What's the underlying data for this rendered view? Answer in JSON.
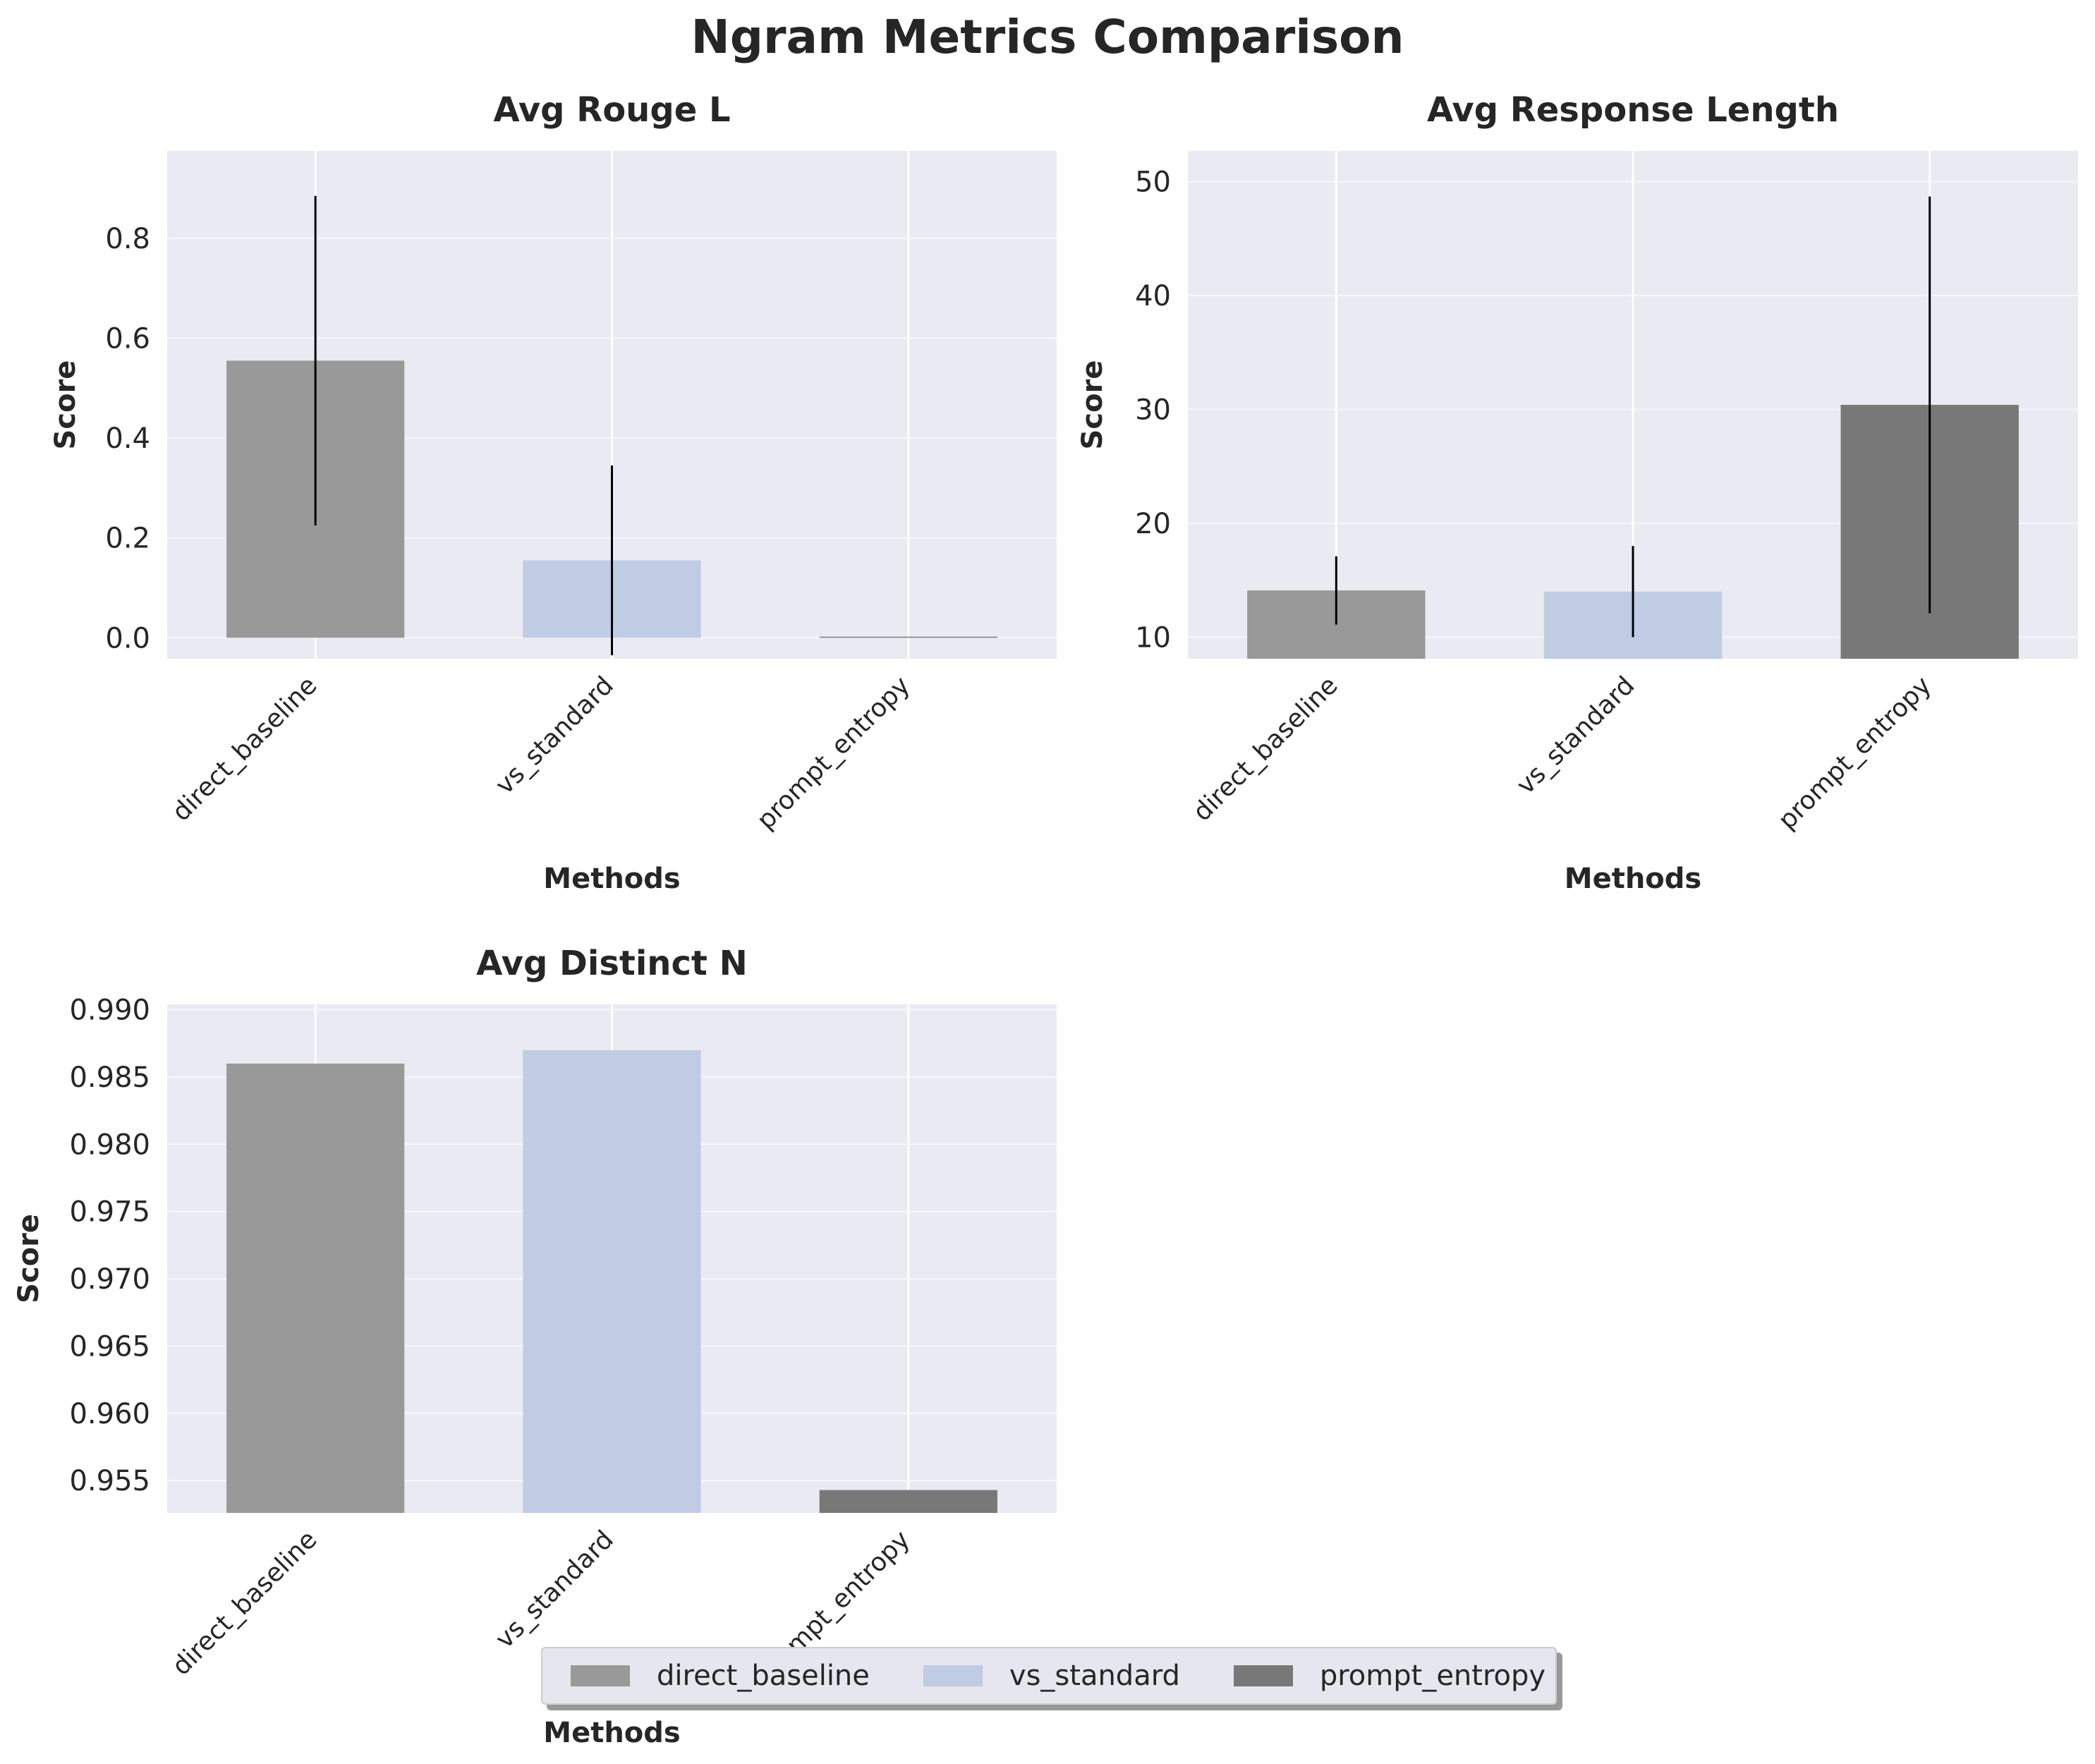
{
  "suptitle": "Ngram Metrics Comparison",
  "colors": {
    "background": "#eaeaf2",
    "grid": "#ffffff",
    "error_bar": "#000000",
    "direct_baseline": "#999999",
    "vs_standard": "#c0cbe4",
    "prompt_entropy": "#787878"
  },
  "legend": {
    "placement": "lower-center",
    "items": [
      {
        "label": "direct_baseline",
        "color": "#999999"
      },
      {
        "label": "vs_standard",
        "color": "#c0cbe4"
      },
      {
        "label": "prompt_entropy",
        "color": "#787878"
      }
    ]
  },
  "chart_data": [
    {
      "type": "bar",
      "title": "Avg Rouge L",
      "xlabel": "Methods",
      "ylabel": "Score",
      "categories": [
        "direct_baseline",
        "vs_standard",
        "prompt_entropy"
      ],
      "values": [
        0.555,
        0.155,
        0.0
      ],
      "errors": [
        0.33,
        0.19,
        0.0
      ],
      "ylim": [
        -0.042,
        0.975
      ],
      "yticks": [
        0.0,
        0.2,
        0.4,
        0.6,
        0.8
      ],
      "yticklabels": [
        "0.0",
        "0.2",
        "0.4",
        "0.6",
        "0.8"
      ],
      "grid": true
    },
    {
      "type": "bar",
      "title": "Avg Response Length",
      "xlabel": "Methods",
      "ylabel": "Score",
      "categories": [
        "direct_baseline",
        "vs_standard",
        "prompt_entropy"
      ],
      "values": [
        14.1,
        14.0,
        30.4
      ],
      "errors": [
        3.0,
        4.0,
        18.3
      ],
      "ylim": [
        8.1,
        52.7
      ],
      "yticks": [
        10,
        20,
        30,
        40,
        50
      ],
      "yticklabels": [
        "10",
        "20",
        "30",
        "40",
        "50"
      ],
      "grid": true
    },
    {
      "type": "bar",
      "title": "Avg Distinct N",
      "xlabel": "Methods",
      "ylabel": "Score",
      "categories": [
        "direct_baseline",
        "vs_standard",
        "prompt_entropy"
      ],
      "values": [
        0.986,
        0.987,
        0.9543
      ],
      "errors": [
        0,
        0,
        0
      ],
      "ylim": [
        0.9526,
        0.9904
      ],
      "yticks": [
        0.955,
        0.96,
        0.965,
        0.97,
        0.975,
        0.98,
        0.985,
        0.99
      ],
      "yticklabels": [
        "0.955",
        "0.960",
        "0.965",
        "0.970",
        "0.975",
        "0.980",
        "0.985",
        "0.990"
      ],
      "grid": true
    }
  ]
}
